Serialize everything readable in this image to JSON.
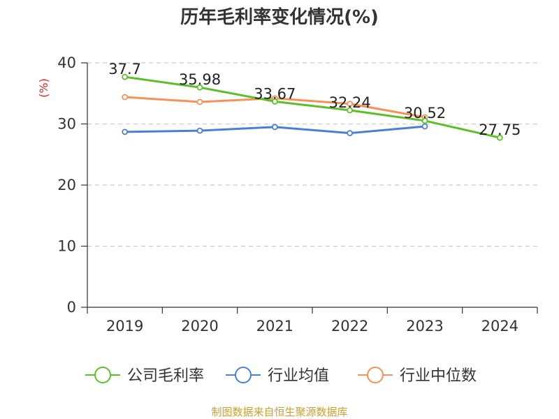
{
  "chart_data": {
    "type": "line",
    "title": "历年毛利率变化情况(%)",
    "ylabel": "(%)",
    "xlabel": "",
    "categories": [
      "2019",
      "2020",
      "2021",
      "2022",
      "2023",
      "2024"
    ],
    "ylim": [
      0,
      40
    ],
    "yticks": [
      0,
      10,
      20,
      30,
      40
    ],
    "grid": "horizontal dashed",
    "legend_position": "bottom",
    "series": [
      {
        "name": "公司毛利率",
        "color": "#5cbf2a",
        "values": [
          37.7,
          35.98,
          33.67,
          32.24,
          30.52,
          27.75
        ],
        "labels": [
          "37.7",
          "35.98",
          "33.67",
          "32.24",
          "30.52",
          "27.75"
        ]
      },
      {
        "name": "行业均值",
        "color": "#4a7fd6",
        "values": [
          28.7,
          28.9,
          29.5,
          28.5,
          29.6,
          null
        ]
      },
      {
        "name": "行业中位数",
        "color": "#f5915a",
        "values": [
          34.4,
          33.6,
          34.2,
          33.3,
          31.1,
          null
        ]
      }
    ]
  },
  "footer": {
    "source": "制图数据来自恒生聚源数据库"
  }
}
